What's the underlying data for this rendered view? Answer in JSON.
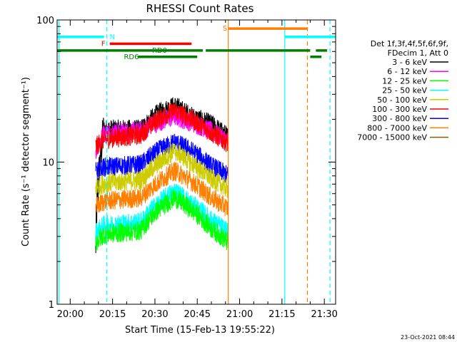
{
  "chart_data": {
    "type": "line",
    "title": "RHESSI Count Rates",
    "xlabel_prefix": "Start Time (",
    "start_time": "15-Feb-13 19:55:22",
    "xlabel_suffix": ")",
    "ylabel": "Count Rate (s⁻¹ detector segment⁻¹)",
    "y_scale": "log",
    "x_range": [
      "19:55:22",
      "21:34:00"
    ],
    "ylim": [
      1,
      100
    ],
    "x_ticks": [
      "20:00",
      "20:15",
      "20:30",
      "20:45",
      "21:00",
      "21:15",
      "21:30"
    ],
    "y_tick_labels": [
      {
        "value": 1,
        "label": "1"
      },
      {
        "value": 10,
        "label": "10"
      },
      {
        "value": 100,
        "label": "100"
      }
    ],
    "legend_header": [
      "Det 1f,3f,4f,5f,6f,9f,",
      "FDecim 1, Att 0"
    ],
    "legend_placement": "right",
    "date_stamp": "23-Oct-2021 08:44",
    "data_window": [
      "20:09",
      "20:56"
    ],
    "series": [
      {
        "name": "3 - 6 keV",
        "color": "#000000",
        "profile": [
          2.3,
          17,
          17,
          22,
          25,
          21,
          18.5,
          15
        ]
      },
      {
        "name": "6 - 12 keV",
        "color": "#ff00ff",
        "profile": [
          12,
          16,
          16.5,
          19,
          21,
          19,
          16.5,
          14
        ]
      },
      {
        "name": "12 - 25 keV",
        "color": "#00ff00",
        "profile": [
          2.7,
          3.1,
          3.3,
          4.6,
          5.6,
          4.6,
          3.4,
          2.7
        ]
      },
      {
        "name": "25 - 50 keV",
        "color": "#00ffff",
        "profile": [
          3.2,
          3.6,
          3.8,
          5.1,
          6.3,
          5.1,
          3.9,
          3.2
        ]
      },
      {
        "name": "50 - 100 keV",
        "color": "#cccc00",
        "profile": [
          6.6,
          7.1,
          7.5,
          9.7,
          12,
          9.8,
          7.6,
          6.4
        ]
      },
      {
        "name": "100 - 300 keV",
        "color": "#ff0000",
        "profile": [
          12.8,
          14.5,
          15.5,
          20,
          23,
          20,
          16,
          13.5
        ]
      },
      {
        "name": "300 - 800 keV",
        "color": "#0000ff",
        "profile": [
          8.5,
          9.2,
          9.6,
          12,
          13.8,
          12,
          9.4,
          8.0
        ]
      },
      {
        "name": "800 - 7000 keV",
        "color": "#ff8000",
        "profile": [
          4.8,
          5.3,
          5.6,
          7.2,
          8.7,
          7.3,
          5.6,
          4.7
        ]
      },
      {
        "name": "7000 - 15000 keV",
        "color": "#806000",
        "profile": []
      }
    ],
    "profile_times": [
      "20:09",
      "20:12",
      "20:25",
      "20:31",
      "20:37",
      "20:43",
      "20:50",
      "20:56"
    ],
    "flags": [
      {
        "label": "N",
        "color": "#00ffff",
        "y": 76,
        "segments": [
          [
            "19:55:22",
            "20:12"
          ],
          [
            "21:16",
            "21:34"
          ]
        ],
        "label_at": "20:14"
      },
      {
        "label": "F",
        "color": "#ff0000",
        "y": 68,
        "segments": [
          [
            "20:14",
            "20:43"
          ]
        ],
        "label_at": "20:11"
      },
      {
        "label": "RD0",
        "color": "#008000",
        "y": 61,
        "segments": [
          [
            "19:55:22",
            "20:47"
          ],
          [
            "20:48",
            "21:25"
          ],
          [
            "21:27",
            "21:31"
          ]
        ],
        "label_at": "20:29"
      },
      {
        "label": "RD6",
        "color": "#008000",
        "y": 55,
        "segments": [
          [
            "20:24",
            "20:45"
          ],
          [
            "21:25",
            "21:29"
          ]
        ],
        "label_at": "20:19"
      },
      {
        "label": "S",
        "color": "#ff8000",
        "y": 87,
        "segments": [
          [
            "20:56",
            "21:24"
          ]
        ],
        "label_at": "20:54"
      }
    ],
    "vlines": [
      {
        "time": "19:56",
        "color": "#00ffff",
        "style": "solid"
      },
      {
        "time": "20:13",
        "color": "#00ffff",
        "style": "dashed"
      },
      {
        "time": "20:56",
        "color": "#ff8000",
        "style": "solid"
      },
      {
        "time": "21:16",
        "color": "#00ffff",
        "style": "solid"
      },
      {
        "time": "21:24",
        "color": "#ff8000",
        "style": "dashed"
      },
      {
        "time": "21:32",
        "color": "#00ffff",
        "style": "dashed"
      }
    ]
  }
}
